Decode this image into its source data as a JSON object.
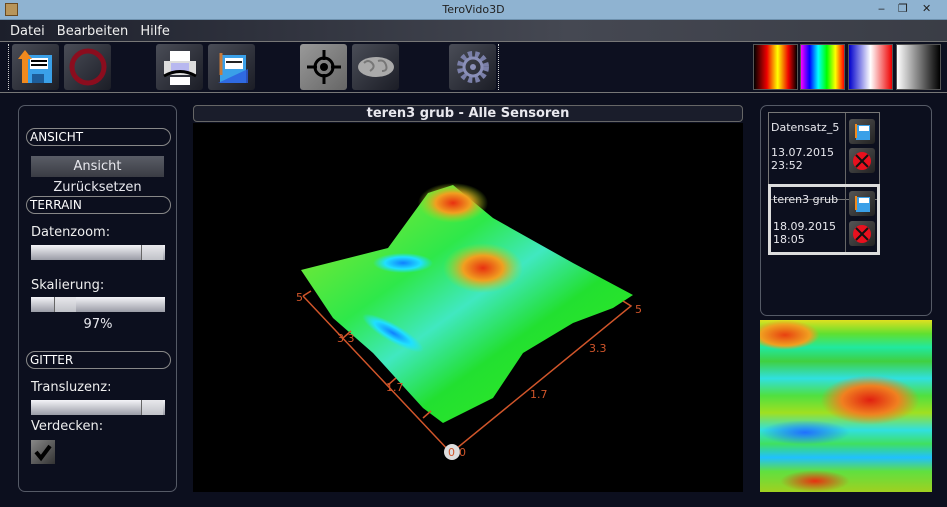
{
  "window": {
    "title": "TeroVido3D",
    "controls": [
      "‒",
      "❐",
      "✕"
    ]
  },
  "menu": [
    "Datei",
    "Bearbeiten",
    "Hilfe"
  ],
  "toolbar": {
    "buttons": [
      "load-file-icon",
      "stop-icon",
      "print-icon",
      "export-icon",
      "crosshair-icon",
      "world-map-icon",
      "gear-icon"
    ],
    "palettes": [
      "red-black-palette",
      "rainbow-palette",
      "blue-white-red-palette",
      "grayscale-palette"
    ]
  },
  "left": {
    "ansicht": {
      "header": "ANSICHT",
      "reset_button": "Ansicht Zurücksetzen"
    },
    "terrain": {
      "header": "TERRAIN",
      "datenzoom_label": "Datenzoom:",
      "datenzoom_value": 0.85,
      "skalierung_label": "Skalierung:",
      "skalierung_value": "97%"
    },
    "gitter": {
      "header": "GITTER",
      "transluzenz_label": "Transluzenz:",
      "transluzenz_value": 0.85,
      "verdecken_label": "Verdecken:",
      "verdecken_checked": true
    }
  },
  "view": {
    "title": "teren3 grub - Alle Sensoren",
    "axis_left_ticks": [
      "5",
      "3.3",
      "1.7"
    ],
    "axis_right_ticks": [
      "5",
      "3.3",
      "1.7"
    ],
    "origin": "0",
    "origin_right": "0"
  },
  "datasets": [
    {
      "name": "Datensatz_5",
      "date": "13.07.2015",
      "time": "23:52",
      "selected": false
    },
    {
      "name": "teren3 grub",
      "date": "18.09.2015",
      "time": "18:05",
      "selected": true
    }
  ]
}
